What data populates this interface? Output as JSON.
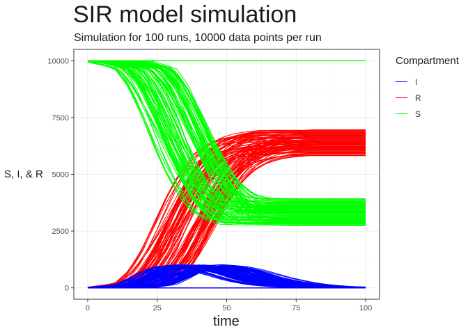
{
  "chart_data": {
    "type": "line",
    "title": "SIR model simulation",
    "subtitle": "Simulation for 100 runs, 10000 data points per run",
    "xlabel": "time",
    "ylabel": "S, I, & R",
    "xlim": [
      -5,
      105
    ],
    "ylim": [
      -500,
      10500
    ],
    "x_ticks": [
      "0",
      "25",
      "50",
      "75",
      "100"
    ],
    "y_ticks": [
      "0",
      "2500",
      "5000",
      "7500",
      "10000"
    ],
    "grid": true,
    "legend": {
      "title": "Compartment",
      "position": "right"
    },
    "n_runs": 100,
    "series": [
      {
        "name": "I",
        "color": "#0000ff",
        "x": [
          0,
          10,
          20,
          25,
          30,
          35,
          40,
          45,
          50,
          55,
          60,
          65,
          70,
          75,
          80,
          90,
          100
        ],
        "values": [
          0,
          5,
          150,
          400,
          700,
          900,
          950,
          900,
          780,
          600,
          420,
          280,
          170,
          100,
          55,
          15,
          5
        ]
      },
      {
        "name": "R",
        "color": "#ff0000",
        "x": [
          0,
          10,
          20,
          25,
          30,
          35,
          40,
          45,
          50,
          55,
          60,
          65,
          70,
          75,
          80,
          90,
          100
        ],
        "values": [
          0,
          10,
          200,
          700,
          1600,
          2800,
          4000,
          5000,
          5700,
          6100,
          6300,
          6400,
          6450,
          6450,
          6450,
          6450,
          6450
        ]
      },
      {
        "name": "S",
        "color": "#00ff00",
        "x": [
          0,
          10,
          20,
          25,
          30,
          35,
          40,
          45,
          50,
          55,
          60,
          65,
          70,
          75,
          80,
          90,
          100
        ],
        "values": [
          10000,
          9985,
          9650,
          8900,
          7700,
          6300,
          5050,
          4100,
          3520,
          3300,
          3280,
          3270,
          3270,
          3270,
          3270,
          3270,
          3270
        ]
      }
    ]
  }
}
